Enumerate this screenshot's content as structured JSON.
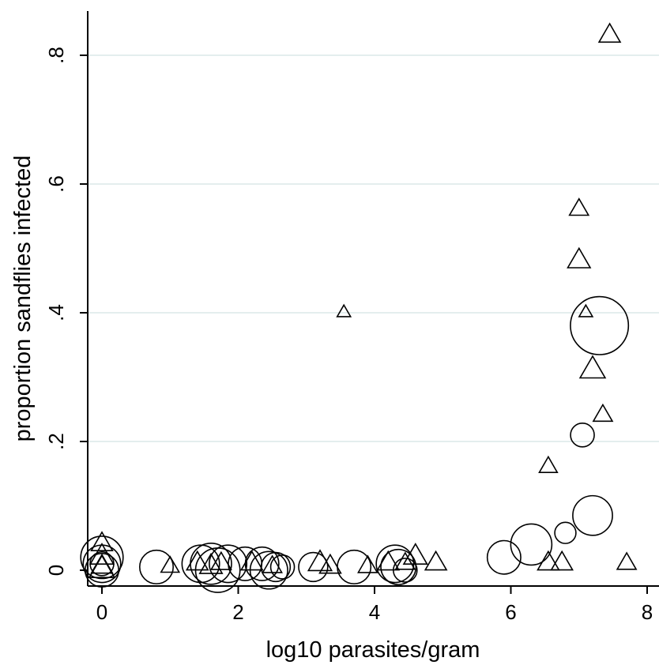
{
  "chart_data": {
    "type": "scatter",
    "title": "",
    "xlabel": "log10 parasites/gram",
    "ylabel": "proportion sandflies infected",
    "xlim": [
      -0.5,
      8.2
    ],
    "ylim": [
      -0.02,
      0.87
    ],
    "x_ticks": [
      {
        "value": 0,
        "label": "0"
      },
      {
        "value": 2,
        "label": "2"
      },
      {
        "value": 4,
        "label": "4"
      },
      {
        "value": 6,
        "label": "6"
      },
      {
        "value": 8,
        "label": "8"
      }
    ],
    "y_ticks": [
      {
        "value": 0,
        "label": "0"
      },
      {
        "value": 0.2,
        "label": ".2"
      },
      {
        "value": 0.4,
        "label": ".4"
      },
      {
        "value": 0.6,
        "label": ".6"
      },
      {
        "value": 0.8,
        "label": ".8"
      }
    ],
    "grid": true,
    "legend": "none",
    "series": [
      {
        "marker": "triangle",
        "points": [
          {
            "x": 7.45,
            "y": 0.83,
            "w": 2.5
          },
          {
            "x": 7.0,
            "y": 0.56,
            "w": 2.0
          },
          {
            "x": 7.0,
            "y": 0.48,
            "w": 2.8
          },
          {
            "x": 7.1,
            "y": 0.4,
            "w": 1.0
          },
          {
            "x": 3.55,
            "y": 0.4,
            "w": 1.0
          },
          {
            "x": 7.2,
            "y": 0.31,
            "w": 3.5
          },
          {
            "x": 7.35,
            "y": 0.24,
            "w": 2.0
          },
          {
            "x": 6.55,
            "y": 0.16,
            "w": 1.8
          },
          {
            "x": 6.55,
            "y": 0.01,
            "w": 2.5
          },
          {
            "x": 6.75,
            "y": 0.01,
            "w": 2.5
          },
          {
            "x": 7.7,
            "y": 0.01,
            "w": 2.0
          },
          {
            "x": 0.0,
            "y": 0.04,
            "w": 2.5
          },
          {
            "x": 0.0,
            "y": 0.02,
            "w": 3.0
          },
          {
            "x": 0.0,
            "y": 0.005,
            "w": 2.5
          },
          {
            "x": 0.0,
            "y": 0.0,
            "w": 3.5
          },
          {
            "x": 1.0,
            "y": 0.005,
            "w": 1.8
          },
          {
            "x": 1.4,
            "y": 0.01,
            "w": 2.5
          },
          {
            "x": 1.6,
            "y": 0.005,
            "w": 2.8
          },
          {
            "x": 1.75,
            "y": 0.01,
            "w": 2.2
          },
          {
            "x": 2.2,
            "y": 0.01,
            "w": 2.5
          },
          {
            "x": 2.5,
            "y": 0.005,
            "w": 2.0
          },
          {
            "x": 3.2,
            "y": 0.01,
            "w": 3.0
          },
          {
            "x": 3.35,
            "y": 0.005,
            "w": 2.5
          },
          {
            "x": 3.9,
            "y": 0.005,
            "w": 2.0
          },
          {
            "x": 4.2,
            "y": 0.01,
            "w": 2.5
          },
          {
            "x": 4.45,
            "y": 0.01,
            "w": 2.0
          },
          {
            "x": 4.6,
            "y": 0.02,
            "w": 3.0
          },
          {
            "x": 4.9,
            "y": 0.01,
            "w": 2.5
          }
        ]
      },
      {
        "marker": "circle",
        "points": [
          {
            "x": 7.3,
            "y": 0.38,
            "w": 6.0
          },
          {
            "x": 7.05,
            "y": 0.21,
            "w": 1.0
          },
          {
            "x": 7.2,
            "y": 0.085,
            "w": 2.8
          },
          {
            "x": 6.8,
            "y": 0.058,
            "w": 0.8
          },
          {
            "x": 6.3,
            "y": 0.04,
            "w": 3.0
          },
          {
            "x": 5.9,
            "y": 0.02,
            "w": 2.0
          },
          {
            "x": 0.0,
            "y": 0.02,
            "w": 3.2
          },
          {
            "x": 0.0,
            "y": 0.01,
            "w": 2.5
          },
          {
            "x": 0.0,
            "y": 0.0,
            "w": 2.0
          },
          {
            "x": 0.0,
            "y": 0.01,
            "w": 1.0
          },
          {
            "x": 0.8,
            "y": 0.005,
            "w": 2.0
          },
          {
            "x": 1.45,
            "y": 0.01,
            "w": 2.5
          },
          {
            "x": 1.6,
            "y": 0.01,
            "w": 3.0
          },
          {
            "x": 1.7,
            "y": 0.0,
            "w": 3.5
          },
          {
            "x": 1.85,
            "y": 0.01,
            "w": 2.5
          },
          {
            "x": 2.1,
            "y": 0.01,
            "w": 2.0
          },
          {
            "x": 2.35,
            "y": 0.01,
            "w": 2.0
          },
          {
            "x": 2.45,
            "y": 0.0,
            "w": 2.5
          },
          {
            "x": 2.55,
            "y": 0.005,
            "w": 1.5
          },
          {
            "x": 2.65,
            "y": 0.005,
            "w": 1.0
          },
          {
            "x": 3.1,
            "y": 0.005,
            "w": 1.5
          },
          {
            "x": 3.7,
            "y": 0.005,
            "w": 2.0
          },
          {
            "x": 4.3,
            "y": 0.01,
            "w": 2.5
          },
          {
            "x": 4.35,
            "y": 0.005,
            "w": 2.2
          },
          {
            "x": 4.45,
            "y": 0.0,
            "w": 1.0
          }
        ]
      }
    ]
  }
}
